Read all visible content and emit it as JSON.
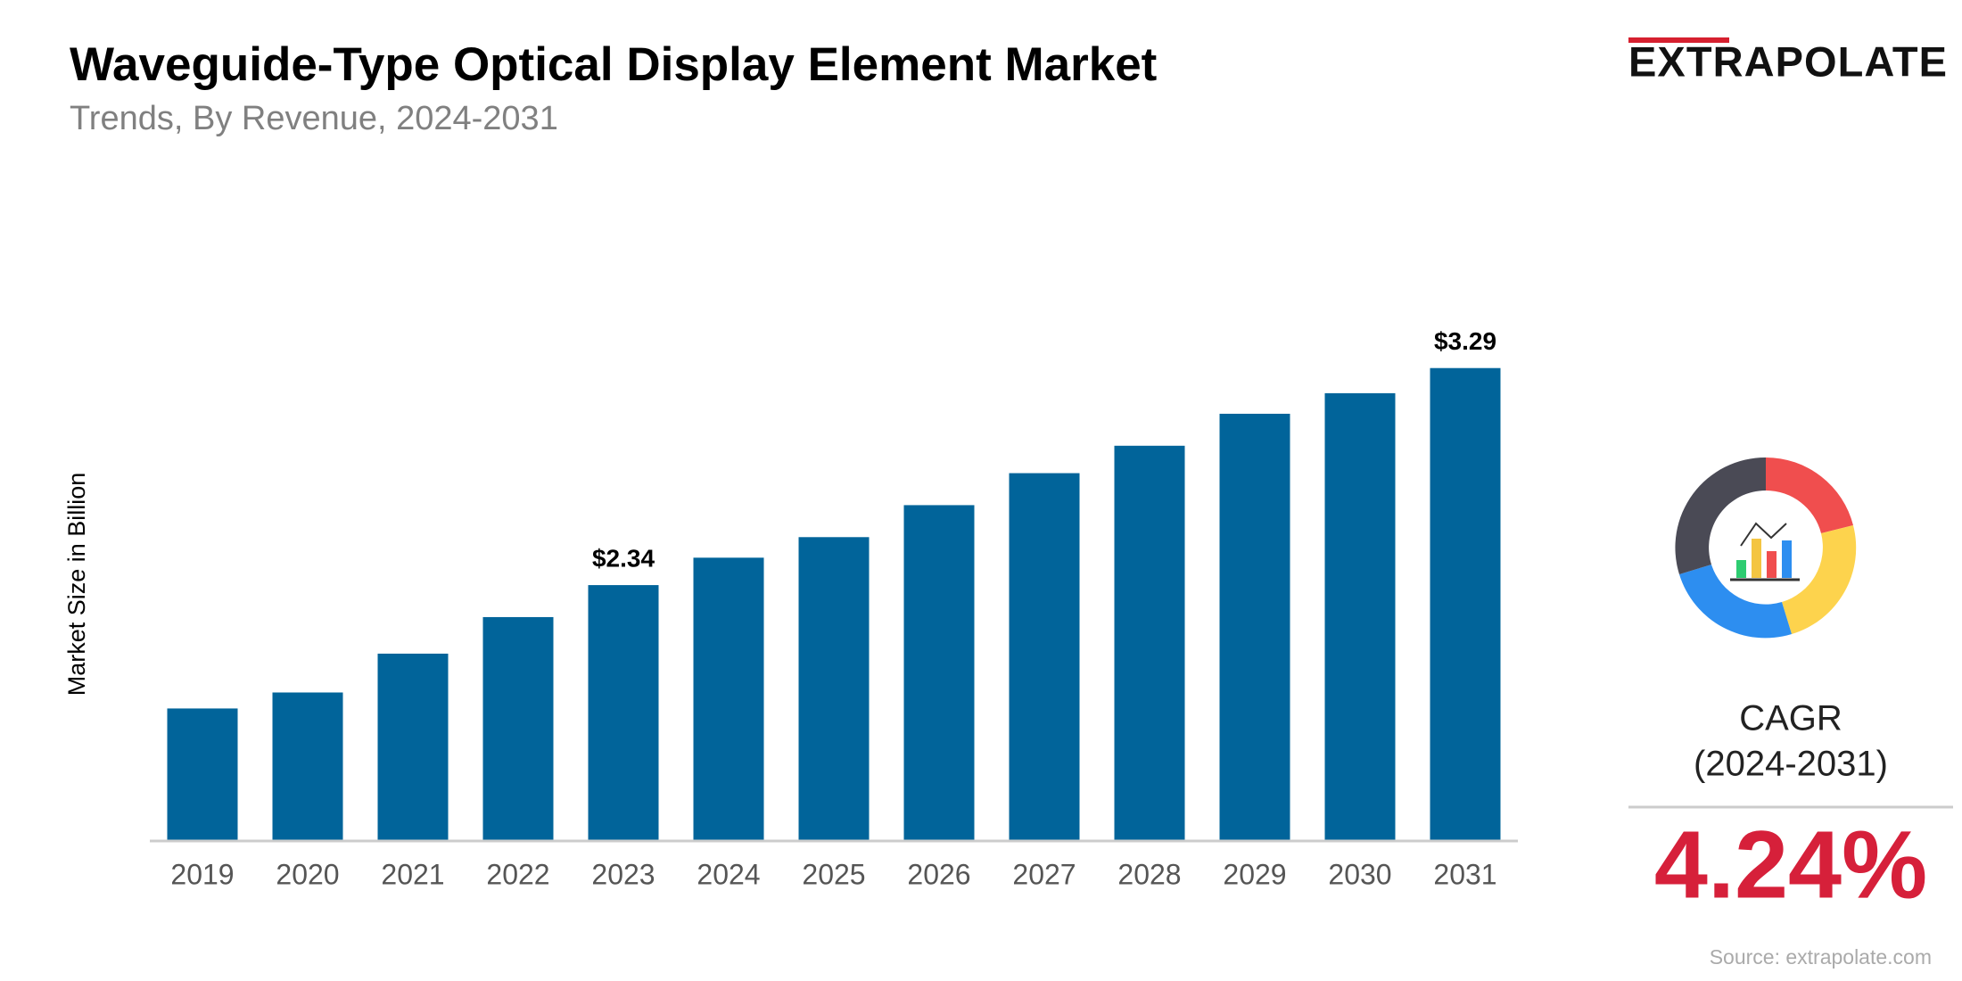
{
  "chart_data": {
    "type": "bar",
    "title": "Waveguide-Type Optical Display Element Market",
    "subtitle": "Trends, By Revenue, 2024-2031",
    "y_label": "Market Size in Billion",
    "categories": [
      "2019",
      "2020",
      "2021",
      "2022",
      "2023",
      "2024",
      "2025",
      "2026",
      "2027",
      "2028",
      "2029",
      "2030",
      "2031"
    ],
    "values": [
      1.8,
      1.87,
      2.04,
      2.2,
      2.34,
      2.46,
      2.55,
      2.69,
      2.83,
      2.95,
      3.09,
      3.18,
      3.29
    ],
    "value_labels": [
      null,
      null,
      null,
      null,
      "$2.34",
      null,
      null,
      null,
      null,
      null,
      null,
      null,
      "$3.29"
    ],
    "color": "#01649a",
    "ylim": [
      1.22,
      3.73
    ]
  },
  "brand": "EXTRAPOLATE",
  "cagr": {
    "label": "CAGR",
    "period": "(2024-2031)",
    "value": "4.24%"
  },
  "source": "Source: extrapolate.com"
}
